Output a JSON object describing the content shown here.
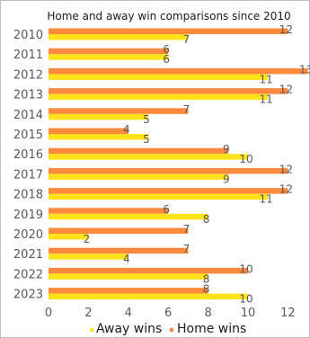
{
  "chart_data": {
    "type": "bar",
    "orientation": "horizontal",
    "title": "Home and away win comparisons since 2010",
    "categories": [
      "2010",
      "2011",
      "2012",
      "2013",
      "2014",
      "2015",
      "2016",
      "2017",
      "2018",
      "2019",
      "2020",
      "2021",
      "2022",
      "2023"
    ],
    "series": [
      {
        "name": "Away wins",
        "color": "#FFE21A",
        "values": [
          7,
          6,
          11,
          11,
          5,
          5,
          10,
          9,
          11,
          8,
          2,
          4,
          8,
          10
        ]
      },
      {
        "name": "Home wins",
        "color": "#FF8A3D",
        "values": [
          12,
          6,
          13,
          12,
          7,
          4,
          9,
          12,
          12,
          6,
          7,
          7,
          10,
          8
        ]
      }
    ],
    "xlim": [
      0,
      13
    ],
    "xticks": [
      0,
      2,
      4,
      6,
      8,
      10,
      12
    ],
    "legend": "bottom",
    "grid": false
  }
}
